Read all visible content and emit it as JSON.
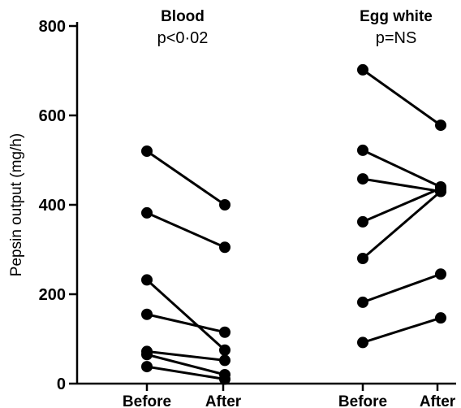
{
  "chart_data": {
    "type": "line",
    "ylabel": "Pepsin output (mg/h)",
    "ylim": [
      0,
      800
    ],
    "yticks": [
      0,
      200,
      400,
      600,
      800
    ],
    "panels": [
      {
        "title": "Blood",
        "stat": "p<0·02",
        "categories": [
          "Before",
          "After"
        ],
        "pairs": [
          [
            520,
            400
          ],
          [
            382,
            305
          ],
          [
            232,
            75
          ],
          [
            155,
            115
          ],
          [
            72,
            52
          ],
          [
            65,
            20
          ],
          [
            38,
            10
          ]
        ]
      },
      {
        "title": "Egg white",
        "stat": "p=NS",
        "categories": [
          "Before",
          "After"
        ],
        "pairs": [
          [
            702,
            578
          ],
          [
            522,
            440
          ],
          [
            458,
            430
          ],
          [
            362,
            437
          ],
          [
            280,
            430
          ],
          [
            182,
            245
          ],
          [
            92,
            147
          ]
        ]
      }
    ]
  }
}
